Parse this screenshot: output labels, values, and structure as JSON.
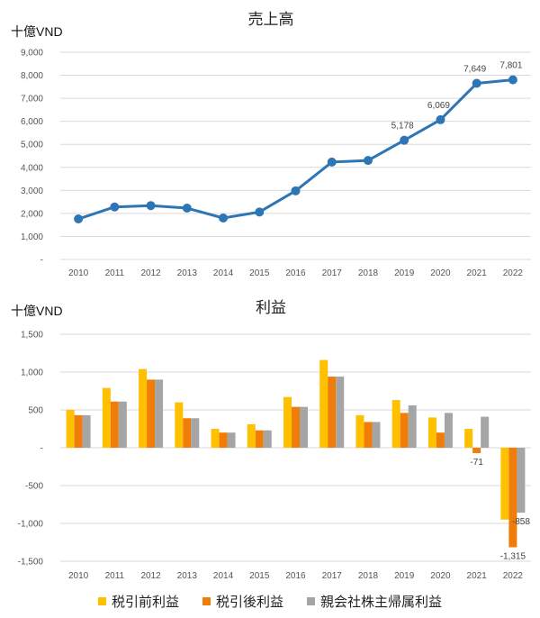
{
  "revenue_chart": {
    "title": "売上高",
    "unit": "十億VND"
  },
  "profit_chart": {
    "title": "利益",
    "unit": "十億VND"
  },
  "colors": {
    "revenue_line": "#2e75b6",
    "pretax": "#ffc000",
    "aftertax": "#f07d0a",
    "parent": "#a5a5a5"
  },
  "chart_data": [
    {
      "type": "line",
      "title": "売上高",
      "ylabel": "十億VND",
      "categories": [
        "2010",
        "2011",
        "2012",
        "2013",
        "2014",
        "2015",
        "2016",
        "2017",
        "2018",
        "2019",
        "2020",
        "2021",
        "2022"
      ],
      "series": [
        {
          "values": [
            1760,
            2280,
            2340,
            2230,
            1800,
            2060,
            2980,
            4230,
            4300,
            5178,
            6069,
            7649,
            7801
          ],
          "labels": [
            "",
            "",
            "",
            "",
            "",
            "",
            "",
            "",
            "",
            "5,178",
            "6,069",
            "7,649",
            "7,801"
          ]
        }
      ],
      "yticks": [
        "-",
        "1,000",
        "2,000",
        "3,000",
        "4,000",
        "5,000",
        "6,000",
        "7,000",
        "8,000",
        "9,000"
      ],
      "ylim": [
        0,
        9000
      ],
      "grid": true
    },
    {
      "type": "bar",
      "title": "利益",
      "ylabel": "十億VND",
      "categories": [
        "2010",
        "2011",
        "2012",
        "2013",
        "2014",
        "2015",
        "2016",
        "2017",
        "2018",
        "2019",
        "2020",
        "2021",
        "2022"
      ],
      "series": [
        {
          "name": "税引前利益",
          "values": [
            500,
            790,
            1040,
            600,
            250,
            310,
            670,
            1160,
            430,
            630,
            400,
            250,
            -950
          ],
          "labels": [
            "",
            "",
            "",
            "",
            "",
            "",
            "",
            "",
            "",
            "",
            "",
            "",
            ""
          ]
        },
        {
          "name": "税引後利益",
          "values": [
            430,
            610,
            900,
            390,
            200,
            230,
            540,
            940,
            340,
            460,
            200,
            -71,
            -1315
          ],
          "labels": [
            "",
            "",
            "",
            "",
            "",
            "",
            "",
            "",
            "",
            "",
            "",
            "-71",
            "-1,315"
          ]
        },
        {
          "name": "親会社株主帰属利益",
          "values": [
            430,
            610,
            900,
            390,
            200,
            230,
            540,
            940,
            340,
            560,
            460,
            410,
            -858
          ],
          "labels": [
            "",
            "",
            "",
            "",
            "",
            "",
            "",
            "",
            "",
            "",
            "",
            "",
            "-858"
          ]
        }
      ],
      "yticks": [
        "-1,500",
        "-1,000",
        "-500",
        "-",
        "500",
        "1,000",
        "1,500"
      ],
      "ylim": [
        -1500,
        1500
      ],
      "grid": true,
      "legend": "bottom"
    }
  ]
}
